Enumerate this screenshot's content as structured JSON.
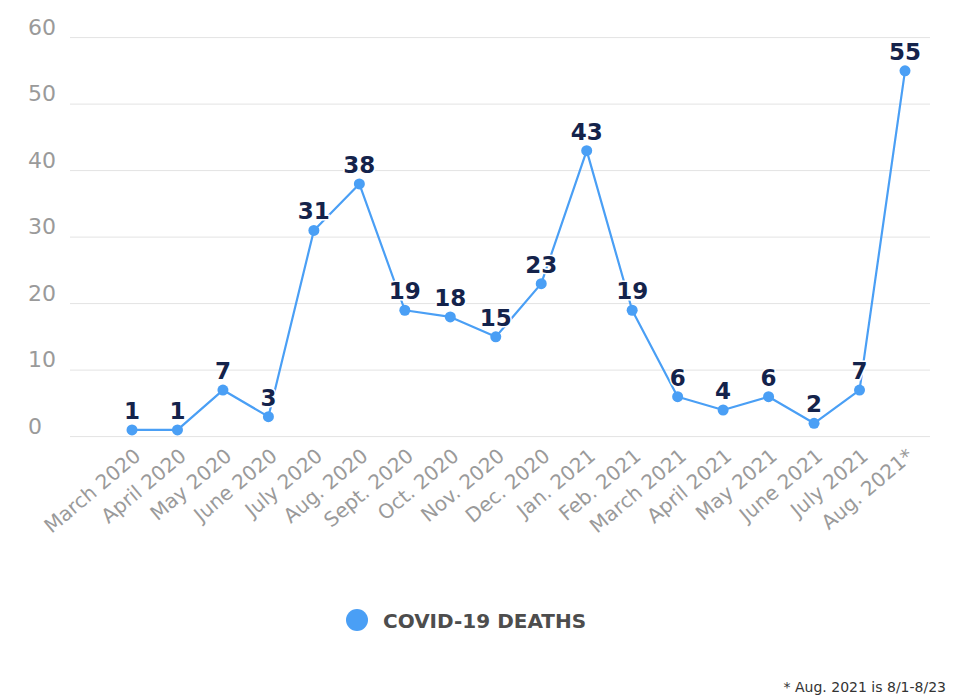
{
  "chart_data": {
    "type": "line",
    "categories": [
      "March 2020",
      "April 2020",
      "May 2020",
      "June 2020",
      "July 2020",
      "Aug. 2020",
      "Sept. 2020",
      "Oct. 2020",
      "Nov. 2020",
      "Dec. 2020",
      "Jan. 2021",
      "Feb. 2021",
      "March 2021",
      "April 2021",
      "May 2021",
      "June 2021",
      "July 2021",
      "Aug. 2021*"
    ],
    "series": [
      {
        "name": "COVID-19 DEATHS",
        "color": "#4a9ff5",
        "marker": "circle",
        "values": [
          1,
          1,
          7,
          3,
          31,
          38,
          19,
          18,
          15,
          23,
          43,
          19,
          6,
          4,
          6,
          2,
          7,
          55
        ]
      }
    ],
    "ylim": [
      0,
      60
    ],
    "yticks": [
      0,
      10,
      20,
      30,
      40,
      50,
      60
    ],
    "grid": true,
    "data_labels": true,
    "legend": "bottom",
    "annotation": "* Aug. 2021 is 8/1-8/23"
  }
}
